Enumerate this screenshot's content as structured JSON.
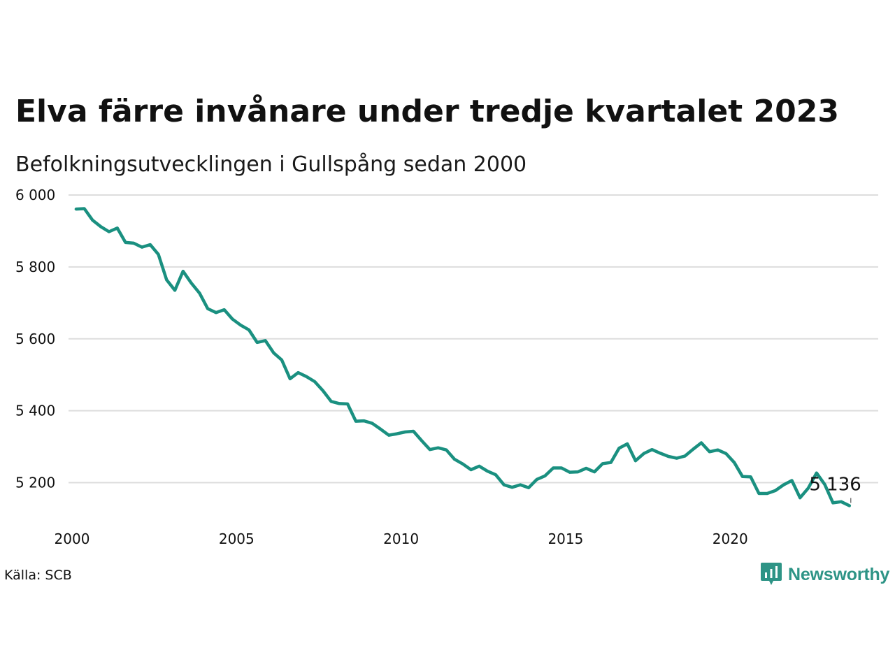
{
  "title": "Elva färre invånare under tredje kvartalet 2023",
  "subtitle": "Befolkningsutvecklingen i Gullspång sedan 2000",
  "source": "Källa: SCB",
  "logo": {
    "text": "Newsworthy",
    "icon": "newsworthy-logo-icon",
    "color": "#2e9486"
  },
  "colors": {
    "line": "#1a9080",
    "grid": "#dddddd"
  },
  "chart_data": {
    "type": "line",
    "title": "Elva färre invånare under tredje kvartalet 2023",
    "subtitle": "Befolkningsutvecklingen i Gullspång sedan 2000",
    "ylim": [
      5100,
      6000
    ],
    "xlim": [
      2000,
      2024.5
    ],
    "yticks": [
      {
        "value": 6000,
        "label": "6 000"
      },
      {
        "value": 5800,
        "label": "5 800"
      },
      {
        "value": 5600,
        "label": "5 600"
      },
      {
        "value": 5400,
        "label": "5 400"
      },
      {
        "value": 5200,
        "label": "5 200"
      }
    ],
    "xticks": [
      {
        "value": 2000,
        "label": "2000"
      },
      {
        "value": 2005,
        "label": "2005"
      },
      {
        "value": 2010,
        "label": "2010"
      },
      {
        "value": 2015,
        "label": "2015"
      },
      {
        "value": 2020,
        "label": "2020"
      }
    ],
    "grid": true,
    "series": [
      {
        "x": [
          "2000-Q1",
          "2000-Q2",
          "2000-Q3",
          "2000-Q4",
          "2001-Q1",
          "2001-Q2",
          "2001-Q3",
          "2001-Q4",
          "2002-Q1",
          "2002-Q2",
          "2002-Q3",
          "2002-Q4",
          "2003-Q1",
          "2003-Q2",
          "2003-Q3",
          "2003-Q4",
          "2004-Q1",
          "2004-Q2",
          "2004-Q3",
          "2004-Q4",
          "2005-Q1",
          "2005-Q2",
          "2005-Q3",
          "2005-Q4",
          "2006-Q1",
          "2006-Q2",
          "2006-Q3",
          "2006-Q4",
          "2007-Q1",
          "2007-Q2",
          "2007-Q3",
          "2007-Q4",
          "2008-Q1",
          "2008-Q2",
          "2008-Q3",
          "2008-Q4",
          "2009-Q1",
          "2009-Q2",
          "2009-Q3",
          "2009-Q4",
          "2010-Q1",
          "2010-Q2",
          "2010-Q3",
          "2010-Q4",
          "2011-Q1",
          "2011-Q2",
          "2011-Q3",
          "2011-Q4",
          "2012-Q1",
          "2012-Q2",
          "2012-Q3",
          "2012-Q4",
          "2013-Q1",
          "2013-Q2",
          "2013-Q3",
          "2013-Q4",
          "2014-Q1",
          "2014-Q2",
          "2014-Q3",
          "2014-Q4",
          "2015-Q1",
          "2015-Q2",
          "2015-Q3",
          "2015-Q4",
          "2016-Q1",
          "2016-Q2",
          "2016-Q3",
          "2016-Q4",
          "2017-Q1",
          "2017-Q2",
          "2017-Q3",
          "2017-Q4",
          "2018-Q1",
          "2018-Q2",
          "2018-Q3",
          "2018-Q4",
          "2019-Q1",
          "2019-Q2",
          "2019-Q3",
          "2019-Q4",
          "2020-Q1",
          "2020-Q2",
          "2020-Q3",
          "2020-Q4",
          "2021-Q1",
          "2021-Q2",
          "2021-Q3",
          "2021-Q4",
          "2022-Q1",
          "2022-Q2",
          "2022-Q3",
          "2022-Q4",
          "2023-Q1",
          "2023-Q2",
          "2023-Q3"
        ],
        "values": [
          5961,
          5962,
          5930,
          5912,
          5898,
          5908,
          5868,
          5866,
          5855,
          5862,
          5835,
          5764,
          5735,
          5788,
          5755,
          5727,
          5684,
          5673,
          5681,
          5655,
          5638,
          5625,
          5590,
          5595,
          5561,
          5541,
          5489,
          5506,
          5495,
          5481,
          5456,
          5426,
          5420,
          5419,
          5371,
          5372,
          5365,
          5349,
          5332,
          5336,
          5341,
          5343,
          5317,
          5292,
          5297,
          5291,
          5265,
          5252,
          5236,
          5246,
          5232,
          5222,
          5194,
          5187,
          5194,
          5186,
          5209,
          5219,
          5241,
          5241,
          5229,
          5230,
          5240,
          5230,
          5253,
          5256,
          5296,
          5308,
          5261,
          5281,
          5292,
          5282,
          5273,
          5268,
          5274,
          5293,
          5311,
          5286,
          5291,
          5281,
          5256,
          5217,
          5216,
          5170,
          5170,
          5178,
          5194,
          5206,
          5158,
          5185,
          5227,
          5195,
          5144,
          5147,
          5136
        ]
      }
    ],
    "annotations": [
      {
        "x": "2023-Q3",
        "value": 5136,
        "label": "5 136"
      }
    ]
  }
}
